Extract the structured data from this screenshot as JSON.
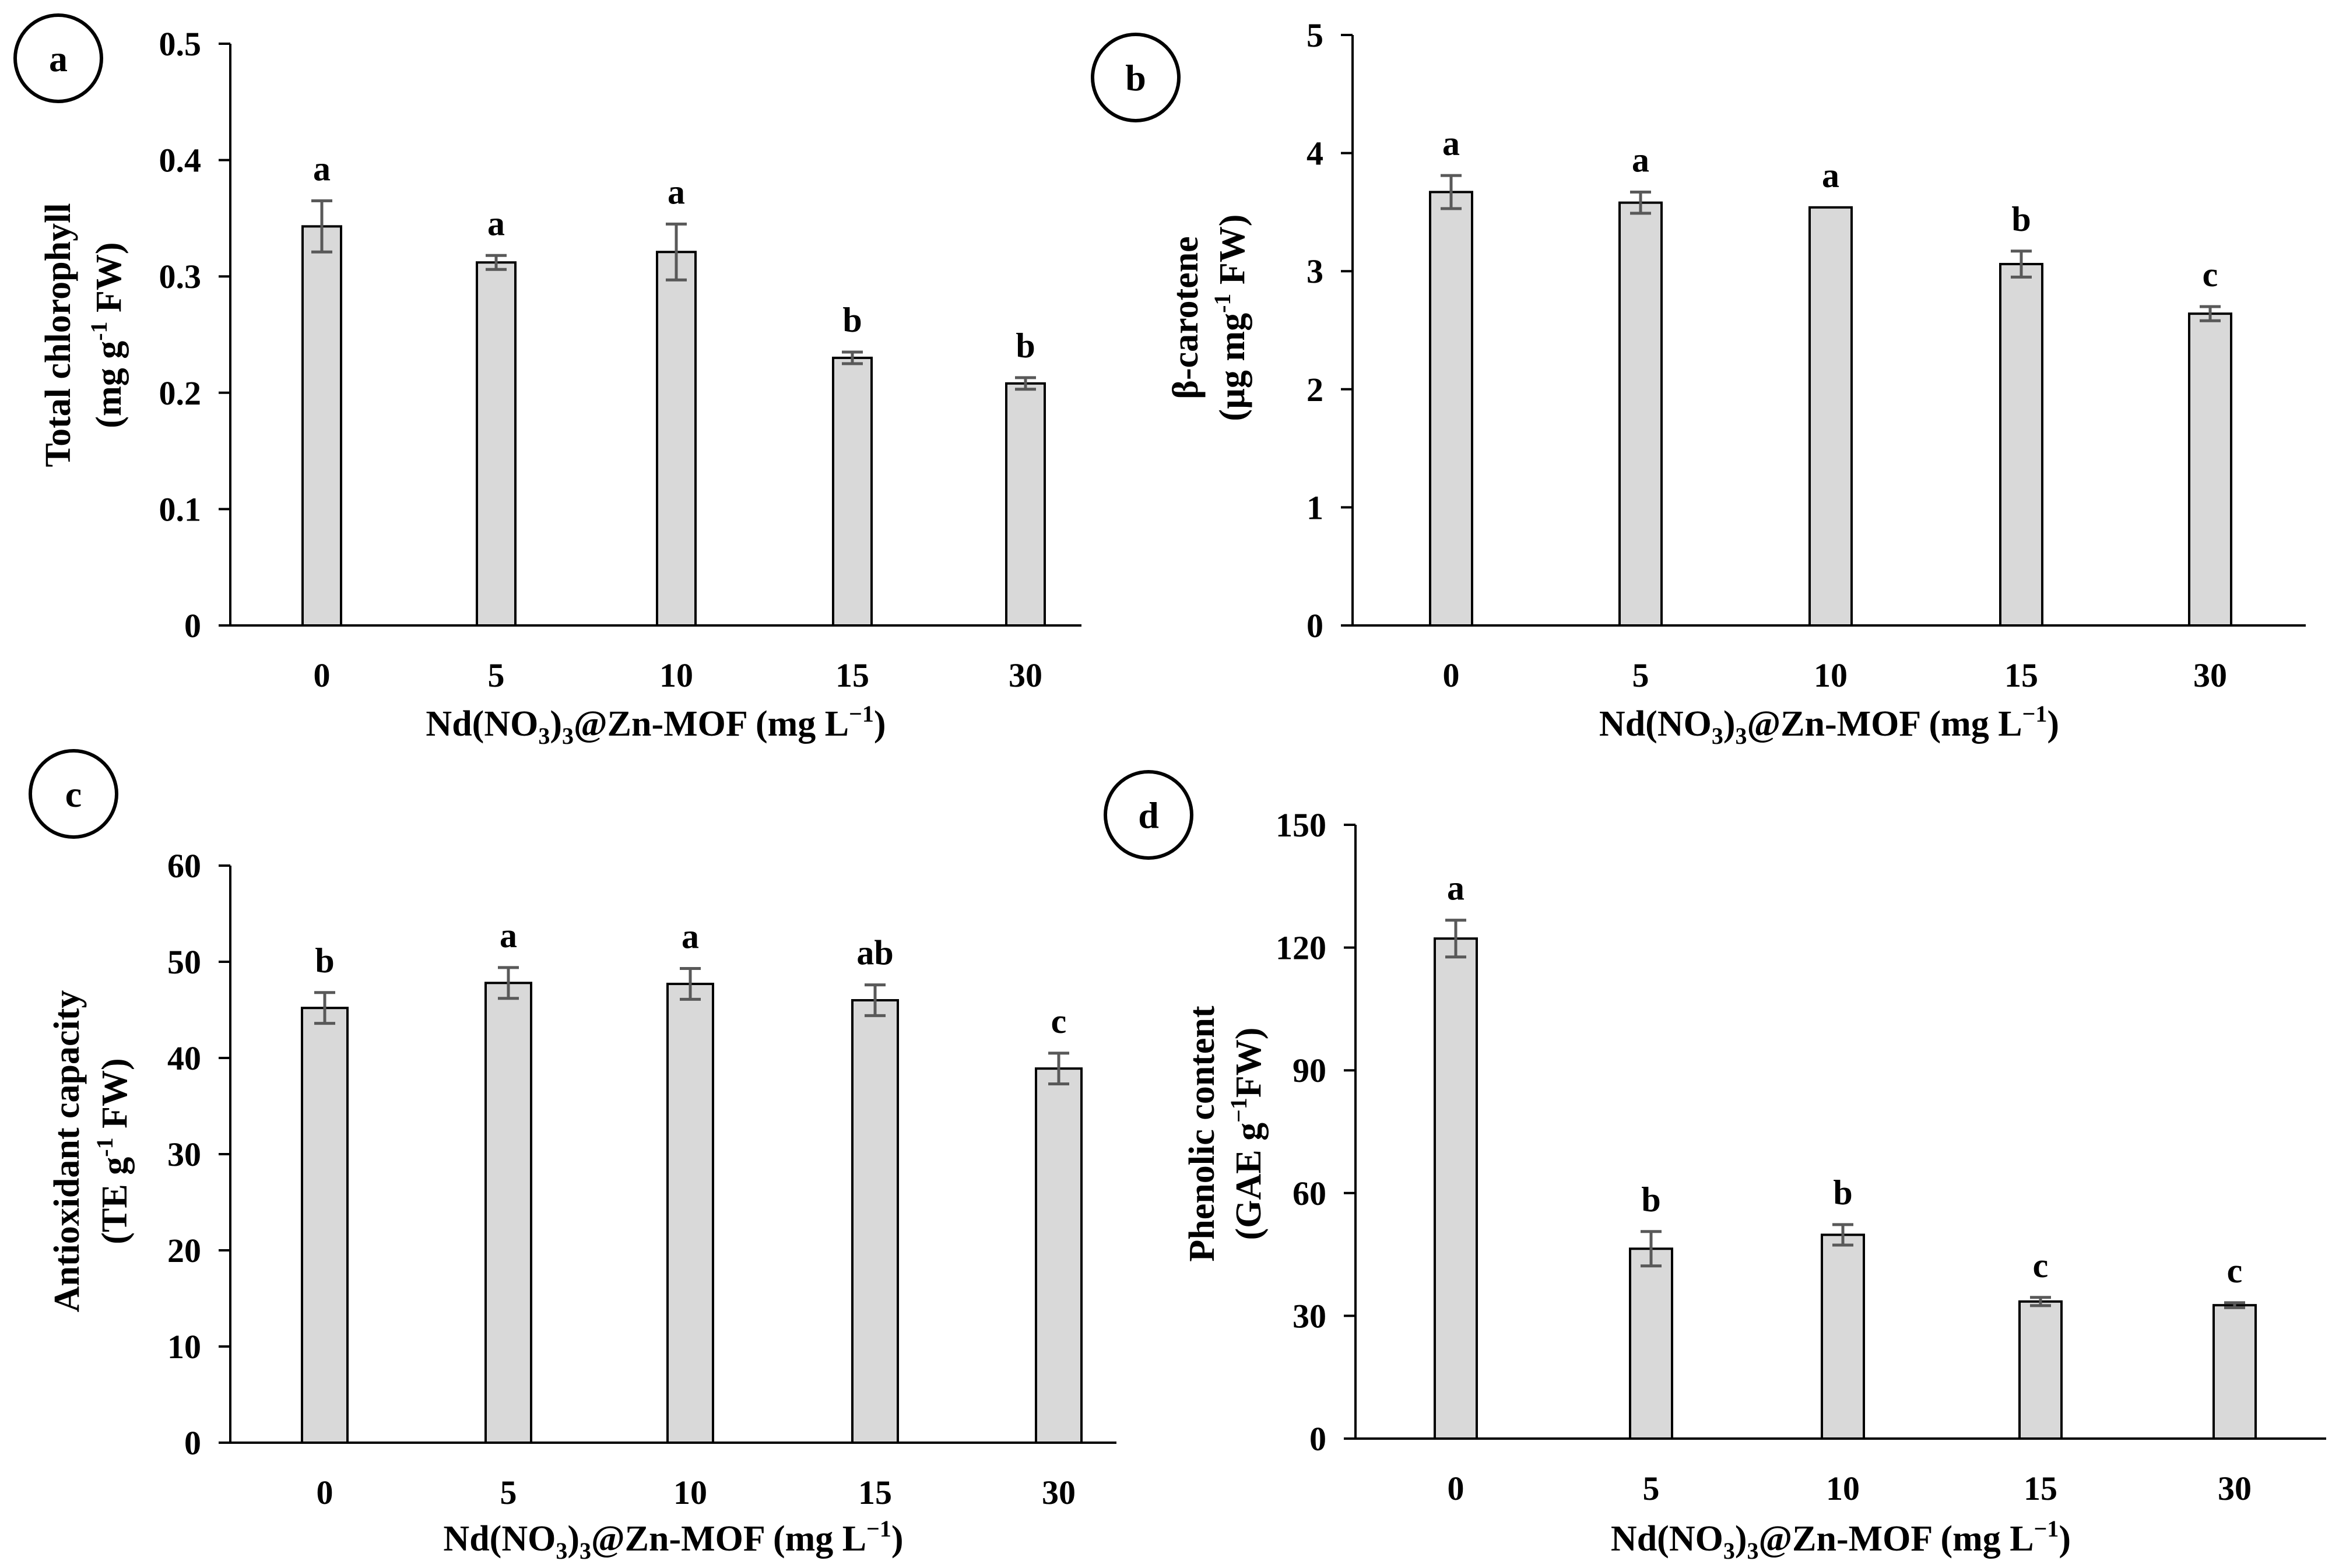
{
  "colors": {
    "bar_fill": "#d9d9d9",
    "bar_stroke": "#000000",
    "error_bar": "#595959",
    "axis": "#000000"
  },
  "chart_data": [
    {
      "panel_label": "a",
      "type": "bar",
      "categories": [
        "0",
        "5",
        "10",
        "15",
        "30"
      ],
      "values": [
        0.343,
        0.312,
        0.321,
        0.23,
        0.208
      ],
      "errors": [
        0.022,
        0.006,
        0.024,
        0.005,
        0.005
      ],
      "significance": [
        "a",
        "a",
        "a",
        "b",
        "b"
      ],
      "ylim": [
        0,
        0.5
      ],
      "yticks": [
        "0",
        "0.1",
        "0.2",
        "0.3",
        "0.4",
        "0.5"
      ],
      "ylabel_line1": "Total chlorophyll",
      "ylabel_line2": {
        "pre": "(mg g",
        "sup": "-1",
        "post": " FW)"
      },
      "xlabel": {
        "a": "Nd(NO",
        "sub1": "3",
        "b": ")",
        "sub2": "3",
        "c": "@Zn-MOF (mg L",
        "sup": "−1",
        "d": ")"
      }
    },
    {
      "panel_label": "b",
      "type": "bar",
      "categories": [
        "0",
        "5",
        "10",
        "15",
        "30"
      ],
      "values": [
        3.67,
        3.58,
        3.54,
        3.06,
        2.64
      ],
      "errors": [
        0.14,
        0.09,
        0.0,
        0.11,
        0.06
      ],
      "significance": [
        "a",
        "a",
        "a",
        "b",
        "c"
      ],
      "ylim": [
        0,
        5
      ],
      "yticks": [
        "0",
        "1",
        "2",
        "3",
        "4",
        "5"
      ],
      "ylabel_line1": "β-carotene",
      "ylabel_line2": {
        "pre": "(µg mg",
        "sup": "-1",
        "post": " FW)"
      },
      "xlabel": {
        "a": "Nd(NO",
        "sub1": "3",
        "b": ")",
        "sub2": "3",
        "c": "@Zn-MOF (mg L",
        "sup": "−1",
        "d": ")"
      }
    },
    {
      "panel_label": "c",
      "type": "bar",
      "categories": [
        "0",
        "5",
        "10",
        "15",
        "30"
      ],
      "values": [
        45.2,
        47.8,
        47.7,
        46.0,
        38.9
      ],
      "errors": [
        1.6,
        1.6,
        1.6,
        1.6,
        1.6
      ],
      "significance": [
        "b",
        "a",
        "a",
        "ab",
        "c"
      ],
      "ylim": [
        0,
        60
      ],
      "yticks": [
        "0",
        "10",
        "20",
        "30",
        "40",
        "50",
        "60"
      ],
      "ylabel_line1": "Antioxidant capacity",
      "ylabel_line2": {
        "pre": "(TE g",
        "sup": "-1",
        "post": " FW)"
      },
      "xlabel": {
        "a": "Nd(NO",
        "sub1": "3",
        "b": ")",
        "sub2": "3",
        "c": "@Zn-MOF (mg L",
        "sup": "−1",
        "d": ")"
      }
    },
    {
      "panel_label": "d",
      "type": "bar",
      "categories": [
        "0",
        "5",
        "10",
        "15",
        "30"
      ],
      "values": [
        122.2,
        46.4,
        49.8,
        33.5,
        32.6
      ],
      "errors": [
        4.5,
        4.2,
        2.5,
        1.0,
        0.6
      ],
      "significance": [
        "a",
        "b",
        "b",
        "c",
        "c"
      ],
      "ylim": [
        0,
        150
      ],
      "yticks": [
        "0",
        "30",
        "60",
        "90",
        "120",
        "150"
      ],
      "ylabel_line1": "Phenolic content",
      "ylabel_line2": {
        "pre": "(GAE g",
        "sup": "−1",
        "post": "FW)"
      },
      "xlabel": {
        "a": "Nd(NO",
        "sub1": "3",
        "b": ")",
        "sub2": "3",
        "c": "@Zn-MOF (mg L",
        "sup": "−1",
        "d": ")"
      }
    }
  ]
}
